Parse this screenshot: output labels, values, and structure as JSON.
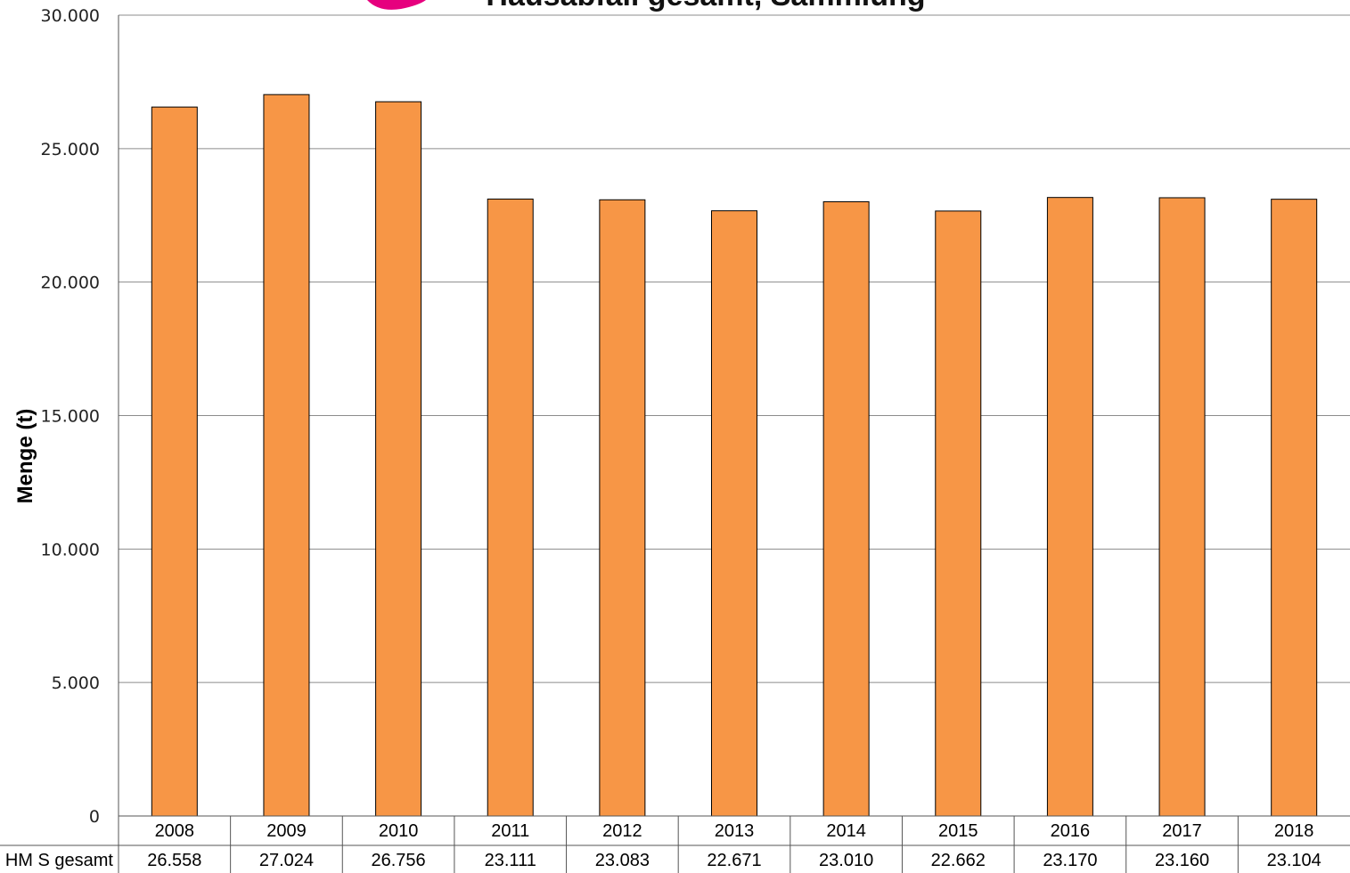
{
  "chart_data": {
    "type": "bar",
    "title": "Hausabfall gesamt, Sammlung",
    "y_label": "Menge (t)",
    "categories": [
      "2008",
      "2009",
      "2010",
      "2011",
      "2012",
      "2013",
      "2014",
      "2015",
      "2016",
      "2017",
      "2018"
    ],
    "series": [
      {
        "name": "HM S gesamt",
        "color": "#f79646",
        "values": [
          26558,
          27024,
          26756,
          23111,
          23083,
          22671,
          23010,
          22662,
          23170,
          23160,
          23104
        ],
        "value_labels": [
          "26.558",
          "27.024",
          "26.756",
          "23.111",
          "23.083",
          "22.671",
          "23.010",
          "22.662",
          "23.170",
          "23.160",
          "23.104"
        ]
      }
    ],
    "ylim": [
      0,
      30000
    ],
    "yticks": [
      0,
      {
        "value": 5000,
        "label": "5.000"
      },
      {
        "value": 10000,
        "label": "10.000"
      },
      {
        "value": 15000,
        "label": "15.000"
      },
      {
        "value": 20000,
        "label": "20.000"
      },
      {
        "value": 25000,
        "label": "25.000"
      },
      {
        "value": 30000,
        "label": "30.000"
      }
    ],
    "grid": true
  }
}
